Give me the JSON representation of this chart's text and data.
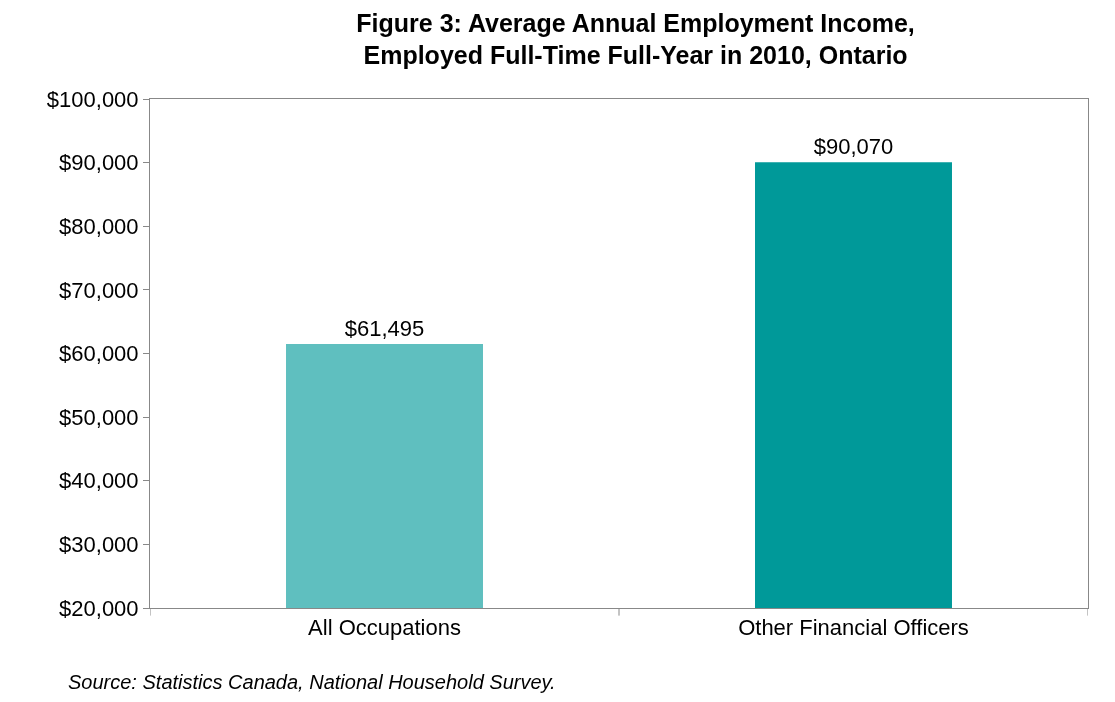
{
  "chart_data": {
    "type": "bar",
    "title": "Figure 3: Average Annual Employment Income,\nEmployed Full-Time Full-Year in 2010, Ontario",
    "categories": [
      "All Occupations",
      "Other Financial Officers"
    ],
    "values": [
      61495,
      90070
    ],
    "colors": [
      "#5fbfbf",
      "#009999"
    ],
    "value_labels": [
      "$61,495",
      "$90,070"
    ],
    "ylim": [
      20000,
      100000
    ],
    "yticks": [
      {
        "value": 20000,
        "label": "$20,000"
      },
      {
        "value": 30000,
        "label": "$30,000"
      },
      {
        "value": 40000,
        "label": "$40,000"
      },
      {
        "value": 50000,
        "label": "$50,000"
      },
      {
        "value": 60000,
        "label": "$60,000"
      },
      {
        "value": 70000,
        "label": "$70,000"
      },
      {
        "value": 80000,
        "label": "$80,000"
      },
      {
        "value": 90000,
        "label": "$90,000"
      },
      {
        "value": 100000,
        "label": "$100,000"
      }
    ],
    "grid": false,
    "annotations": [
      "Source: Statistics Canada, National Household Survey."
    ]
  }
}
